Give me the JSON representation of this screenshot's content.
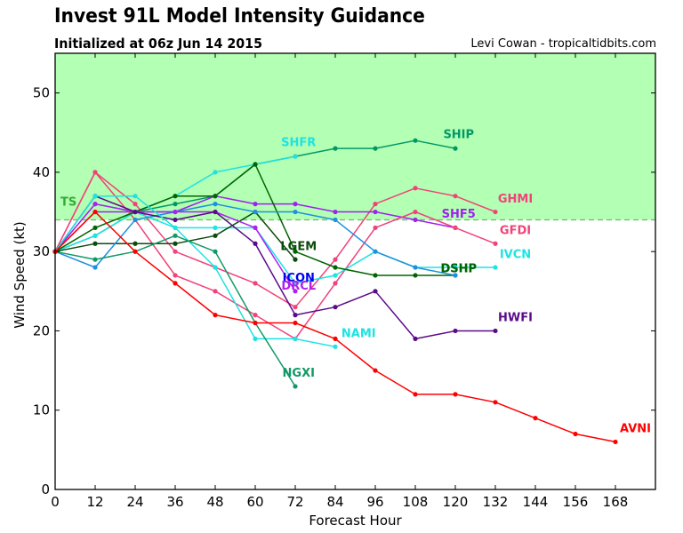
{
  "header": {
    "title": "Invest 91L Model Intensity Guidance",
    "subtitle": "Initialized at 06z Jun 14 2015",
    "credit": "Levi Cowan - tropicaltidbits.com"
  },
  "chart_data": {
    "type": "line",
    "title": "Invest 91L Model Intensity Guidance",
    "subtitle": "Initialized at 06z Jun 14 2015",
    "xlabel": "Forecast Hour",
    "ylabel": "Wind Speed (kt)",
    "xlim": [
      0,
      180
    ],
    "ylim": [
      0,
      55
    ],
    "xticks": [
      0,
      12,
      24,
      36,
      48,
      60,
      72,
      84,
      96,
      108,
      120,
      132,
      144,
      156,
      168
    ],
    "yticks": [
      0,
      10,
      20,
      30,
      40,
      50
    ],
    "grid": false,
    "legend": "none (inline labels at series ends)",
    "threshold": {
      "label": "TS",
      "value": 34,
      "fill_color": "#b3ffb3",
      "label_color": "#33aa33",
      "line_style": "dashed"
    },
    "series": [
      {
        "name": "SHIP",
        "color": "#009966",
        "x": [
          0,
          12,
          24,
          36,
          48,
          60,
          72,
          84,
          96,
          108,
          120
        ],
        "values": [
          30,
          32,
          35,
          36,
          37,
          41,
          42,
          43,
          43,
          44,
          43
        ]
      },
      {
        "name": "SHFR",
        "color": "#1de3e3",
        "x": [
          0,
          12,
          24,
          36,
          48,
          60,
          72
        ],
        "values": [
          30,
          36,
          35,
          37,
          40,
          41,
          42
        ]
      },
      {
        "name": "GHMI",
        "color": "#f0437a",
        "x": [
          0,
          12,
          24,
          36,
          48,
          60,
          72,
          84,
          96,
          108,
          120,
          132
        ],
        "values": [
          30,
          40,
          36,
          30,
          28,
          26,
          23,
          29,
          36,
          38,
          37,
          35
        ]
      },
      {
        "name": "SHF5",
        "color": "#a020f0",
        "x": [
          0,
          12,
          24,
          36,
          48,
          60,
          72,
          84,
          96,
          108,
          120
        ],
        "values": [
          30,
          35,
          35,
          35,
          37,
          36,
          36,
          35,
          35,
          34,
          33
        ]
      },
      {
        "name": "GFDI",
        "color": "#f0437a",
        "x": [
          0,
          12,
          24,
          36,
          48,
          60,
          72,
          84,
          96,
          108,
          120,
          132
        ],
        "values": [
          30,
          40,
          34,
          27,
          25,
          22,
          19,
          26,
          33,
          35,
          33,
          31
        ]
      },
      {
        "name": "IVCN",
        "color": "#1de3e3",
        "x": [
          0,
          12,
          24,
          36,
          48,
          60,
          72,
          84,
          96,
          108,
          120,
          132
        ],
        "values": [
          30,
          32,
          35,
          33,
          33,
          33,
          26,
          27,
          30,
          28,
          28,
          28
        ]
      },
      {
        "name": "LGEM",
        "color": "#0a4a0a",
        "x": [
          0,
          12,
          24,
          36,
          48,
          60,
          72
        ],
        "values": [
          30,
          31,
          31,
          31,
          32,
          35,
          29
        ]
      },
      {
        "name": "DSHP",
        "color": "#006400",
        "x": [
          0,
          12,
          24,
          36,
          48,
          60,
          72,
          84,
          96,
          108,
          120
        ],
        "values": [
          30,
          33,
          35,
          37,
          37,
          41,
          30,
          28,
          27,
          27,
          27
        ]
      },
      {
        "name": "ICON",
        "color": "#1e90e0",
        "x": [
          0,
          12,
          24,
          36,
          48,
          60,
          72,
          84,
          96,
          108,
          120
        ],
        "values": [
          30,
          28,
          34,
          35,
          36,
          35,
          35,
          34,
          30,
          28,
          27
        ]
      },
      {
        "name": "DRCL",
        "color": "#b020f0",
        "x": [
          0,
          12,
          24,
          36,
          48,
          60,
          72
        ],
        "values": [
          30,
          36,
          35,
          35,
          35,
          33,
          25
        ]
      },
      {
        "name": "HWFI",
        "color": "#5a0a8a",
        "x": [
          0,
          12,
          24,
          36,
          48,
          60,
          72,
          84,
          96,
          108,
          120,
          132
        ],
        "values": [
          30,
          37,
          35,
          34,
          35,
          31,
          22,
          23,
          25,
          19,
          20,
          20
        ]
      },
      {
        "name": "NAMI",
        "color": "#1de3e3",
        "x": [
          0,
          12,
          24,
          36,
          48,
          60,
          72,
          84
        ],
        "values": [
          30,
          37,
          37,
          33,
          28,
          19,
          19,
          18
        ]
      },
      {
        "name": "NGXI",
        "color": "#119966",
        "x": [
          0,
          12,
          24,
          36,
          48,
          60,
          72
        ],
        "values": [
          30,
          29,
          30,
          32,
          30,
          21,
          13
        ]
      },
      {
        "name": "AVNI",
        "color": "#ff0000",
        "x": [
          0,
          12,
          24,
          36,
          48,
          60,
          72,
          84,
          96,
          108,
          120,
          132,
          144,
          156,
          168
        ],
        "values": [
          30,
          35,
          30,
          26,
          22,
          21,
          21,
          19,
          15,
          12,
          12,
          11,
          9,
          7,
          6
        ]
      }
    ],
    "labels": [
      {
        "series": "SHIP",
        "color": "#009966",
        "text": "SHIP",
        "at": [
          121,
          44.3
        ]
      },
      {
        "series": "SHFR",
        "color": "#1de3e3",
        "text": "SHFR",
        "at": [
          73,
          43.3
        ]
      },
      {
        "series": "GHMI",
        "color": "#f0437a",
        "text": "GHMI",
        "at": [
          138,
          36.2
        ]
      },
      {
        "series": "SHF5",
        "color": "#a020f0",
        "text": "SHF5",
        "at": [
          121,
          34.3
        ]
      },
      {
        "series": "GFDI",
        "color": "#f0437a",
        "text": "GFDI",
        "at": [
          138,
          32.2
        ]
      },
      {
        "series": "IVCN",
        "color": "#1de3e3",
        "text": "IVCN",
        "at": [
          138,
          29.2
        ]
      },
      {
        "series": "LGEM",
        "color": "#0a4a0a",
        "text": "LGEM",
        "at": [
          73,
          30.2
        ]
      },
      {
        "series": "ICON",
        "color": "#0000ee",
        "text": "ICON",
        "at": [
          73,
          26.2
        ]
      },
      {
        "series": "DRCL",
        "color": "#b020f0",
        "text": "DRCL",
        "at": [
          73,
          25.2
        ]
      },
      {
        "series": "DSHP",
        "color": "#0a8a4a",
        "text": "DSHP",
        "at": [
          121,
          27.4
        ]
      },
      {
        "series": "DSHP",
        "color": "#006400",
        "text": "DSHP",
        "at": [
          121,
          27.4
        ]
      },
      {
        "series": "HWFI",
        "color": "#5a0a8a",
        "text": "HWFI",
        "at": [
          138,
          21.2
        ]
      },
      {
        "series": "NAMI",
        "color": "#1de3e3",
        "text": "NAMI",
        "at": [
          91,
          19.2
        ]
      },
      {
        "series": "NGXI",
        "color": "#119966",
        "text": "NGXI",
        "at": [
          73,
          14.2
        ]
      },
      {
        "series": "AVNI",
        "color": "#ff0000",
        "text": "AVNI",
        "at": [
          174,
          7.2
        ]
      }
    ]
  }
}
